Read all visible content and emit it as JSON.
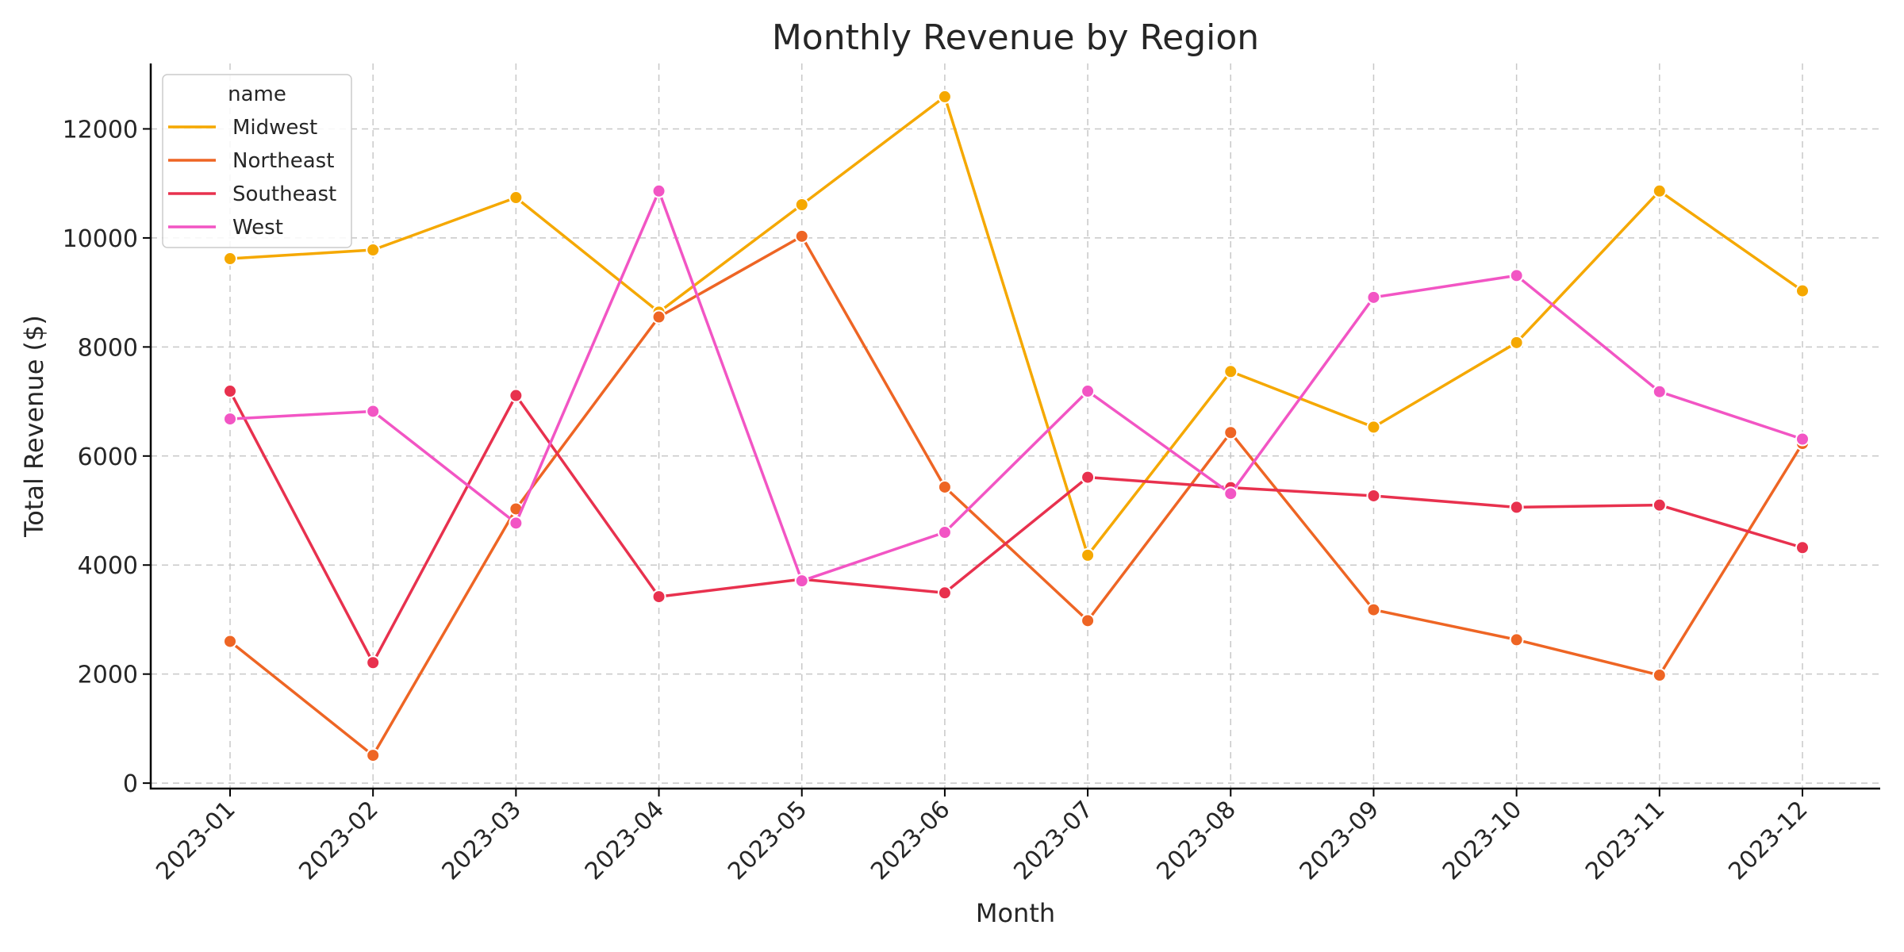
{
  "chart_data": {
    "type": "line",
    "title": "Monthly Revenue by Region",
    "xlabel": "Month",
    "ylabel": "Total Revenue ($)",
    "categories": [
      "2023-01",
      "2023-02",
      "2023-03",
      "2023-04",
      "2023-05",
      "2023-06",
      "2023-07",
      "2023-08",
      "2023-09",
      "2023-10",
      "2023-11",
      "2023-12"
    ],
    "ylim": [
      -100,
      13200
    ],
    "yticks": [
      0,
      2000,
      4000,
      6000,
      8000,
      10000,
      12000
    ],
    "grid": true,
    "legend": {
      "title": "name",
      "placement": "top-left"
    },
    "series": [
      {
        "name": "Midwest",
        "color": "#F5A800",
        "values": [
          9620,
          9780,
          10740,
          8640,
          10610,
          12590,
          4180,
          7550,
          6530,
          8080,
          10860,
          9030
        ]
      },
      {
        "name": "Northeast",
        "color": "#EE6524",
        "values": [
          2600,
          510,
          5030,
          8550,
          10030,
          5430,
          2980,
          6430,
          3180,
          2630,
          1980,
          6230
        ]
      },
      {
        "name": "Southeast",
        "color": "#E8314E",
        "values": [
          7190,
          2210,
          7110,
          3420,
          3740,
          3490,
          5610,
          5420,
          5270,
          5060,
          5100,
          4320
        ]
      },
      {
        "name": "West",
        "color": "#F255C4",
        "values": [
          6680,
          6820,
          4770,
          10860,
          3710,
          4600,
          7190,
          5310,
          8910,
          9310,
          7180,
          6310
        ]
      }
    ]
  }
}
